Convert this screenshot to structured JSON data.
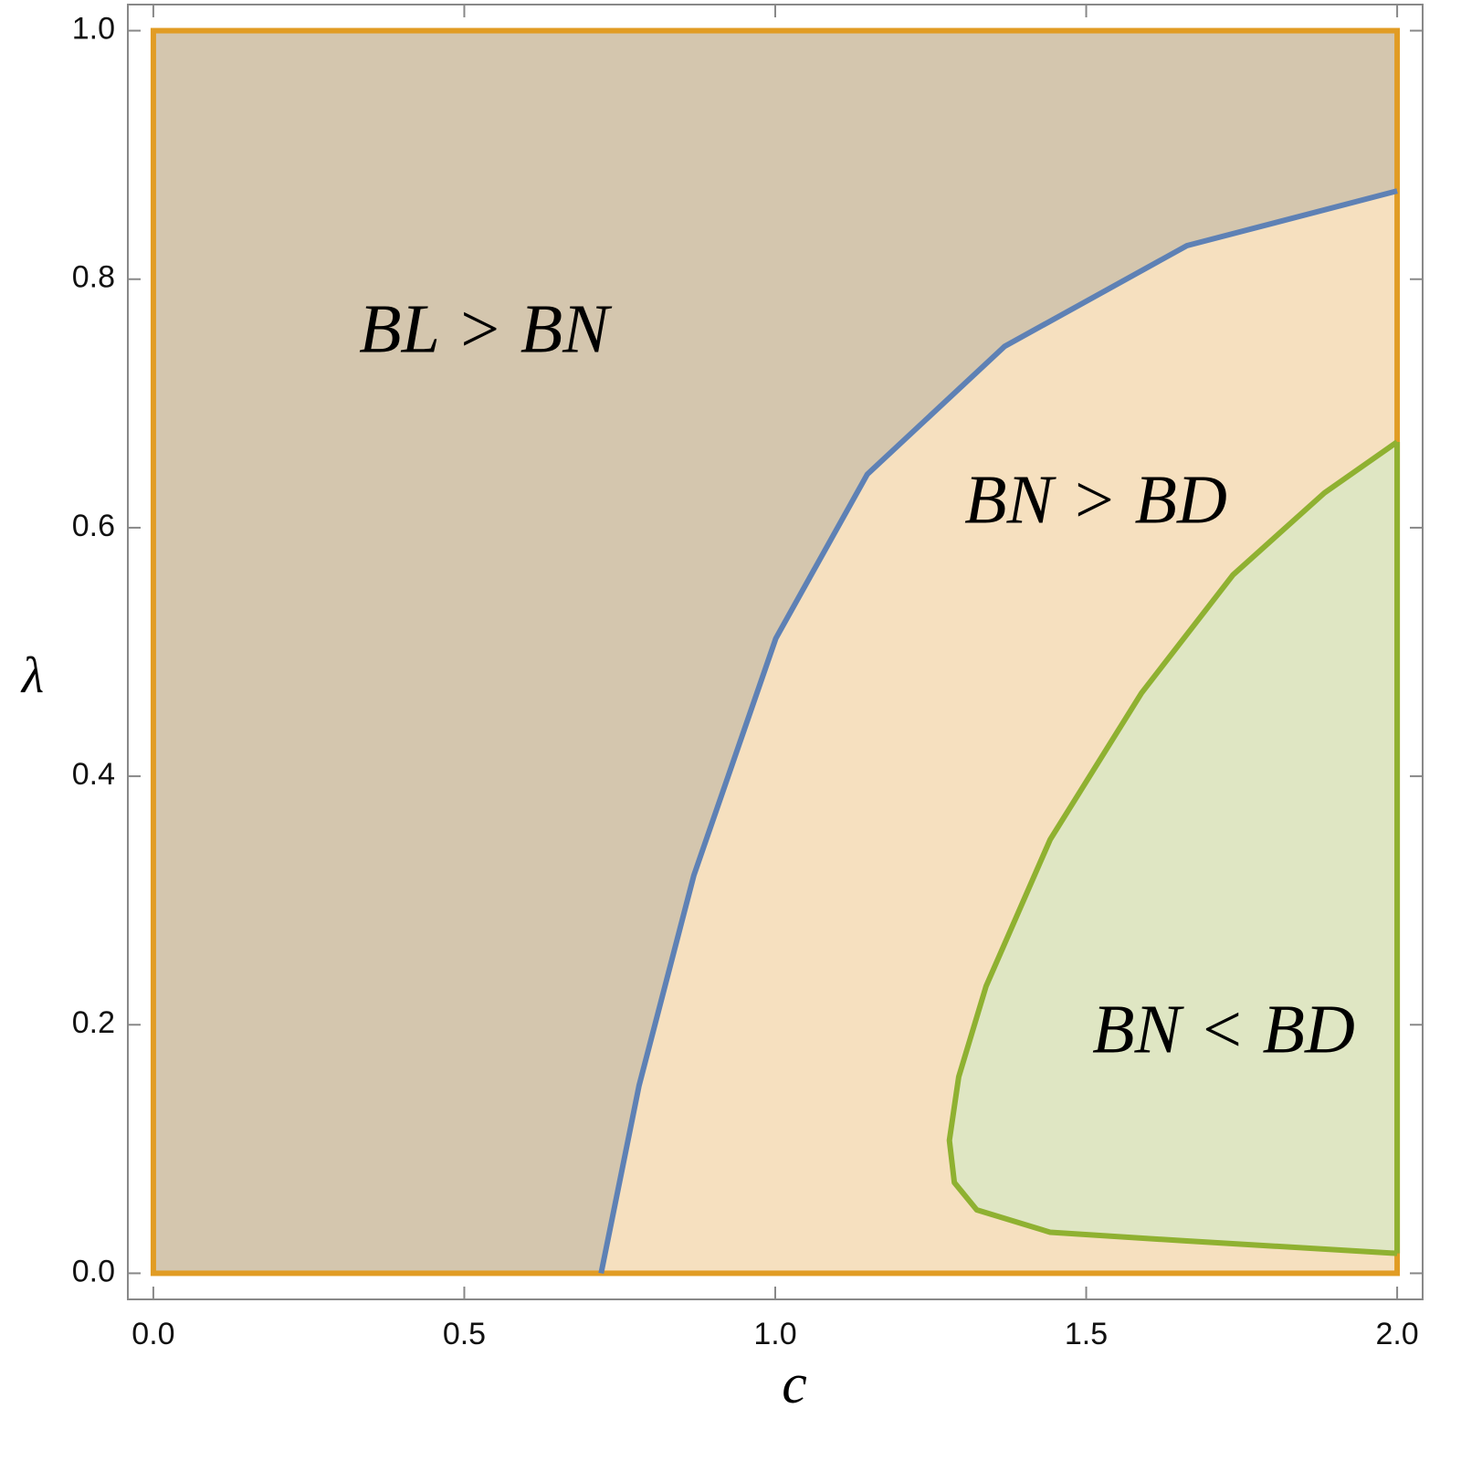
{
  "chart_data": {
    "type": "region",
    "xlabel": "c",
    "ylabel": "λ",
    "xlim": [
      -0.041,
      2.041
    ],
    "ylim": [
      -0.021,
      1.021
    ],
    "xticks": [
      {
        "value": 0,
        "label": "0.0"
      },
      {
        "value": 0.5,
        "label": "0.5"
      },
      {
        "value": 1,
        "label": "1.0"
      },
      {
        "value": 1.5,
        "label": "1.5"
      },
      {
        "value": 2,
        "label": "2.0"
      }
    ],
    "yticks": [
      {
        "value": 0,
        "label": "0.0"
      },
      {
        "value": 0.2,
        "label": "0.2"
      },
      {
        "value": 0.4,
        "label": "0.4"
      },
      {
        "value": 0.6,
        "label": "0.6"
      },
      {
        "value": 0.8,
        "label": "0.8"
      },
      {
        "value": 1,
        "label": "1.0"
      }
    ],
    "background_fill": "#f6e0bf",
    "boundary_color": "#e19c24",
    "series": [
      {
        "color": "#5e81b5",
        "fill": "#d4c6ae",
        "x": [
          0.72,
          0.781,
          0.869,
          1.001,
          1.148,
          1.369,
          1.662,
          2.0
        ],
        "values": [
          0,
          0.151,
          0.32,
          0.511,
          0.643,
          0.746,
          0.827,
          0.871
        ]
      },
      {
        "color": "#8fb131",
        "fill": "#dfe6c3",
        "x": [
          2.0,
          1.662,
          1.442,
          1.324,
          1.288,
          1.28,
          1.295,
          1.339,
          1.442,
          1.589,
          1.736,
          1.883,
          2.0
        ],
        "values": [
          0.016,
          0.026,
          0.033,
          0.051,
          0.073,
          0.107,
          0.158,
          0.231,
          0.349,
          0.467,
          0.562,
          0.628,
          0.669
        ]
      }
    ],
    "annotations": [
      "BL > BN",
      "BN > BD",
      "BN < BD"
    ]
  }
}
